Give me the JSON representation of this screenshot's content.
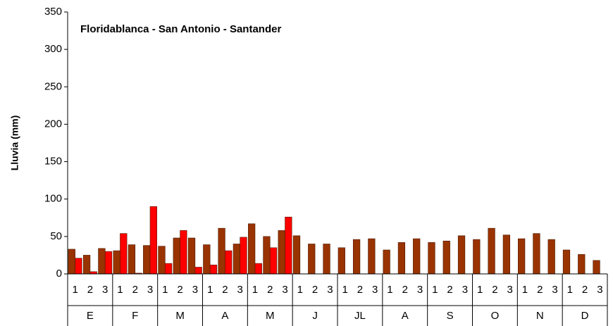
{
  "chart_data": {
    "type": "bar",
    "title": "Floridablanca - San Antonio - Santander",
    "y_label": "Lluvia (mm)",
    "categories": [
      "1",
      "2",
      "3",
      "1",
      "2",
      "3",
      "1",
      "2",
      "3",
      "1",
      "2",
      "3",
      "1",
      "2",
      "3",
      "1",
      "2",
      "3",
      "1",
      "2",
      "3",
      "1",
      "2",
      "3",
      "1",
      "2",
      "3",
      "1",
      "2",
      "3",
      "1",
      "2",
      "3",
      "1",
      "2",
      "3"
    ],
    "groups": [
      "E",
      "F",
      "M",
      "A",
      "M",
      "J",
      "JL",
      "A",
      "S",
      "O",
      "N",
      "D"
    ],
    "series": [
      {
        "color": "#993300",
        "values": [
          33,
          25,
          34,
          31,
          39,
          38,
          37,
          48,
          48,
          39,
          61,
          40,
          67,
          50,
          58,
          51,
          40,
          40,
          35,
          46,
          47,
          32,
          42,
          47,
          42,
          44,
          51,
          46,
          61,
          52,
          47,
          54,
          46,
          32,
          26,
          18
        ]
      },
      {
        "color": "#ff0000",
        "values": [
          21,
          3,
          30,
          54,
          1,
          90,
          14,
          58,
          9,
          12,
          31,
          49,
          14,
          35,
          76,
          null,
          null,
          null,
          null,
          null,
          null,
          null,
          null,
          null,
          null,
          null,
          null,
          null,
          null,
          null,
          null,
          null,
          null,
          null,
          null,
          null
        ]
      }
    ],
    "ylim": [
      0,
      350
    ],
    "yticks": [
      0,
      50,
      100,
      150,
      200,
      250,
      300,
      350
    ]
  }
}
